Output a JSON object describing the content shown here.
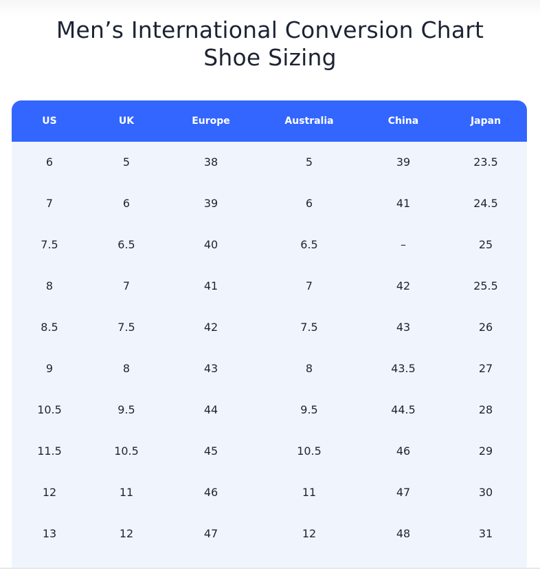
{
  "title": {
    "line1": "Men’s International Conversion Chart",
    "line2": "Shoe Sizing"
  },
  "table": {
    "headers": [
      "US",
      "UK",
      "Europe",
      "Australia",
      "China",
      "Japan"
    ],
    "rows": [
      [
        "6",
        "5",
        "38",
        "5",
        "39",
        "23.5"
      ],
      [
        "7",
        "6",
        "39",
        "6",
        "41",
        "24.5"
      ],
      [
        "7.5",
        "6.5",
        "40",
        "6.5",
        "–",
        "25"
      ],
      [
        "8",
        "7",
        "41",
        "7",
        "42",
        "25.5"
      ],
      [
        "8.5",
        "7.5",
        "42",
        "7.5",
        "43",
        "26"
      ],
      [
        "9",
        "8",
        "43",
        "8",
        "43.5",
        "27"
      ],
      [
        "10.5",
        "9.5",
        "44",
        "9.5",
        "44.5",
        "28"
      ],
      [
        "11.5",
        "10.5",
        "45",
        "10.5",
        "46",
        "29"
      ],
      [
        "12",
        "11",
        "46",
        "11",
        "47",
        "30"
      ],
      [
        "13",
        "12",
        "47",
        "12",
        "48",
        "31"
      ]
    ]
  },
  "colors": {
    "header_bg": "#3366ff",
    "table_bg": "#f0f5fd",
    "text": "#1c2333"
  }
}
